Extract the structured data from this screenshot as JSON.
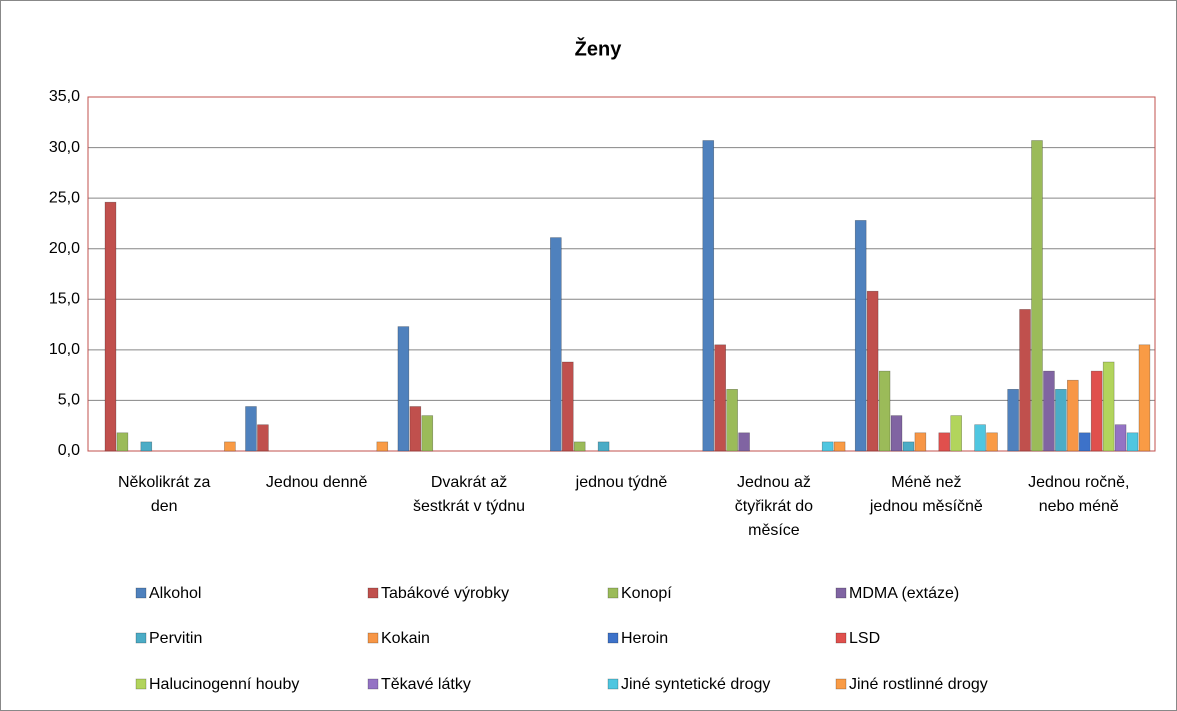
{
  "chart_data": {
    "type": "bar",
    "title": "Ženy",
    "categories": [
      "Několikrát za den",
      "Jednou denně",
      "Dvakrát až šestkrát v týdnu",
      "jednou týdně",
      "Jednou až čtyřikrát do měsíce",
      "Méně než jednou měsíčně",
      "Jednou ročně, nebo méně"
    ],
    "series": [
      {
        "name": "Alkohol",
        "color": "#4f81bd",
        "values": [
          0,
          4.4,
          12.3,
          21.1,
          30.7,
          22.8,
          6.1
        ]
      },
      {
        "name": "Tabákové výrobky",
        "color": "#c0504d",
        "values": [
          24.6,
          2.6,
          4.4,
          8.8,
          10.5,
          15.8,
          14.0
        ]
      },
      {
        "name": "Konopí",
        "color": "#9bbb59",
        "values": [
          1.8,
          0,
          3.5,
          0.9,
          6.1,
          7.9,
          30.7
        ]
      },
      {
        "name": "MDMA (extáze)",
        "color": "#8064a2",
        "values": [
          0,
          0,
          0,
          0,
          1.8,
          3.5,
          7.9
        ]
      },
      {
        "name": "Pervitin",
        "color": "#4bacc6",
        "values": [
          0.9,
          0,
          0,
          0.9,
          0,
          0.9,
          6.1
        ]
      },
      {
        "name": "Kokain",
        "color": "#f79646",
        "values": [
          0,
          0,
          0,
          0,
          0,
          1.8,
          7.0
        ]
      },
      {
        "name": "Heroin",
        "color": "#3d72c9",
        "values": [
          0,
          0,
          0,
          0,
          0,
          0,
          1.8
        ]
      },
      {
        "name": "LSD",
        "color": "#e0504d",
        "values": [
          0,
          0,
          0,
          0,
          0,
          1.8,
          7.9
        ]
      },
      {
        "name": "Halucinogenní houby",
        "color": "#b2d45c",
        "values": [
          0,
          0,
          0,
          0,
          0,
          3.5,
          8.8
        ]
      },
      {
        "name": "Těkavé látky",
        "color": "#9473c4",
        "values": [
          0,
          0,
          0,
          0,
          0,
          0,
          2.6
        ]
      },
      {
        "name": "Jiné syntetické drogy",
        "color": "#4fc6e0",
        "values": [
          0,
          0,
          0,
          0,
          0.9,
          2.6,
          1.8
        ]
      },
      {
        "name": "Jiné rostlinné drogy",
        "color": "#f99b45",
        "values": [
          0.9,
          0.9,
          0,
          0,
          0.9,
          1.8,
          10.5
        ]
      }
    ],
    "ylim": [
      0,
      35
    ],
    "yticks": [
      {
        "value": 0,
        "label": "0,0"
      },
      {
        "value": 5,
        "label": "5,0"
      },
      {
        "value": 10,
        "label": "10,0"
      },
      {
        "value": 15,
        "label": "15,0"
      },
      {
        "value": 20,
        "label": "20,0"
      },
      {
        "value": 25,
        "label": "25,0"
      },
      {
        "value": 30,
        "label": "30,0"
      },
      {
        "value": 35,
        "label": "35,0"
      }
    ],
    "grid": true,
    "legend": "bottom"
  }
}
